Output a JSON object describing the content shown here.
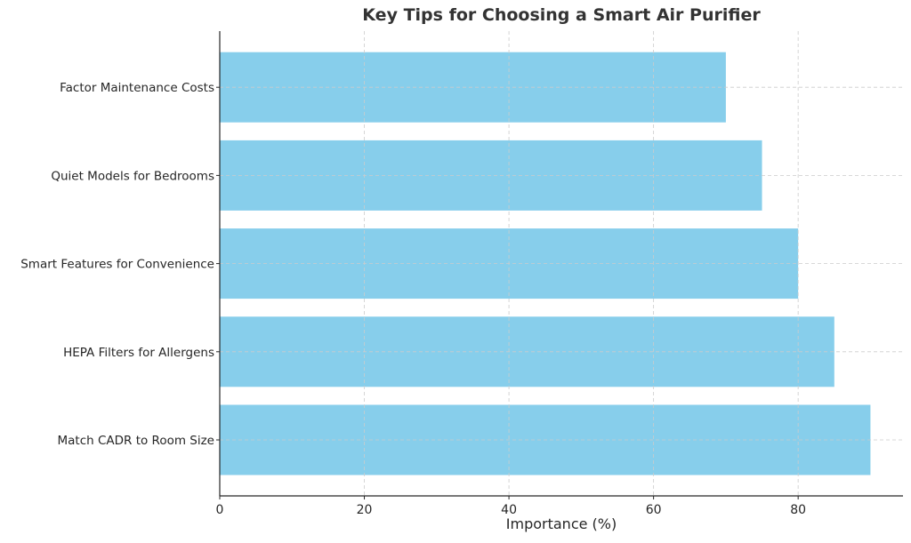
{
  "chart_data": {
    "type": "bar",
    "orientation": "horizontal",
    "title": "Key Tips for Choosing a Smart Air Purifier",
    "xlabel": "Importance (%)",
    "ylabel": "",
    "categories": [
      "Match CADR to Room Size",
      "HEPA Filters for Allergens",
      "Smart Features for Convenience",
      "Quiet Models for Bedrooms",
      "Factor Maintenance Costs"
    ],
    "values": [
      90,
      85,
      80,
      75,
      70
    ],
    "xlim": [
      0,
      94.5
    ],
    "xticks": [
      0,
      20,
      40,
      60,
      80
    ],
    "grid": true,
    "bar_color": "#87CEEB",
    "legend": null
  }
}
